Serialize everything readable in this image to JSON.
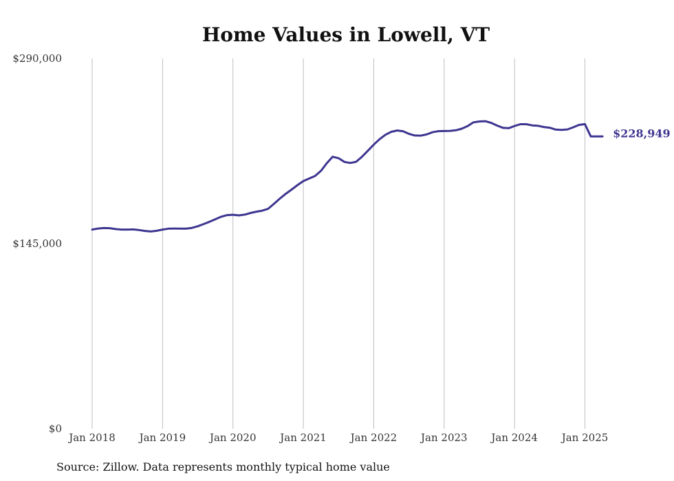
{
  "chart_data": {
    "type": "line",
    "title": "Home Values in Lowell, VT",
    "xlabel": "",
    "ylabel": "",
    "ylim": [
      0,
      290000
    ],
    "y_ticks": [
      {
        "value": 0,
        "label": "$0"
      },
      {
        "value": 145000,
        "label": "$145,000"
      },
      {
        "value": 290000,
        "label": "$290,000"
      }
    ],
    "x_ticks": [
      {
        "value": "2018-01",
        "label": "Jan 2018"
      },
      {
        "value": "2019-01",
        "label": "Jan 2019"
      },
      {
        "value": "2020-01",
        "label": "Jan 2020"
      },
      {
        "value": "2021-01",
        "label": "Jan 2021"
      },
      {
        "value": "2022-01",
        "label": "Jan 2022"
      },
      {
        "value": "2023-01",
        "label": "Jan 2023"
      },
      {
        "value": "2024-01",
        "label": "Jan 2024"
      },
      {
        "value": "2025-01",
        "label": "Jan 2025"
      }
    ],
    "grid": "vertical",
    "color": "#3d3590",
    "series": [
      {
        "x": [
          "2018-01",
          "2018-02",
          "2018-03",
          "2018-04",
          "2018-05",
          "2018-06",
          "2018-07",
          "2018-08",
          "2018-09",
          "2018-10",
          "2018-11",
          "2018-12",
          "2019-01",
          "2019-02",
          "2019-03",
          "2019-04",
          "2019-05",
          "2019-06",
          "2019-07",
          "2019-08",
          "2019-09",
          "2019-10",
          "2019-11",
          "2019-12",
          "2020-01",
          "2020-02",
          "2020-03",
          "2020-04",
          "2020-05",
          "2020-06",
          "2020-07",
          "2020-08",
          "2020-09",
          "2020-10",
          "2020-11",
          "2020-12",
          "2021-01",
          "2021-02",
          "2021-03",
          "2021-04",
          "2021-05",
          "2021-06",
          "2021-07",
          "2021-08",
          "2021-09",
          "2021-10",
          "2021-11",
          "2021-12",
          "2022-01",
          "2022-02",
          "2022-03",
          "2022-04",
          "2022-05",
          "2022-06",
          "2022-07",
          "2022-08",
          "2022-09",
          "2022-10",
          "2022-11",
          "2022-12",
          "2023-01",
          "2023-02",
          "2023-03",
          "2023-04",
          "2023-05",
          "2023-06",
          "2023-07",
          "2023-08",
          "2023-09",
          "2023-10",
          "2023-11",
          "2023-12",
          "2024-01",
          "2024-02",
          "2024-03",
          "2024-04",
          "2024-05",
          "2024-06",
          "2024-07",
          "2024-08",
          "2024-09",
          "2024-10",
          "2024-11",
          "2024-12",
          "2025-01",
          "2025-02",
          "2025-03",
          "2025-04"
        ],
        "values": [
          156000,
          156800,
          157200,
          157100,
          156400,
          156000,
          156000,
          156100,
          155600,
          154900,
          154500,
          155000,
          156000,
          156700,
          156800,
          156700,
          156700,
          157300,
          158600,
          160300,
          162100,
          164100,
          166100,
          167300,
          167600,
          167100,
          167700,
          169000,
          170000,
          170800,
          172300,
          176200,
          180300,
          184000,
          187300,
          190800,
          194000,
          196000,
          198000,
          202000,
          208000,
          213000,
          211900,
          209000,
          208200,
          209100,
          213100,
          217700,
          222500,
          226800,
          230300,
          232600,
          233600,
          233000,
          231000,
          229700,
          229600,
          230500,
          232200,
          233100,
          233200,
          233300,
          233800,
          235000,
          237000,
          240000,
          240700,
          240900,
          239600,
          237500,
          235700,
          235400,
          237100,
          238500,
          238500,
          237600,
          237300,
          236300,
          235800,
          234300,
          234100,
          234400,
          236100,
          238000,
          238600,
          228949,
          228949,
          228949
        ]
      }
    ],
    "end_label": "$228,949",
    "source": "Source: Zillow. Data represents monthly typical home value"
  }
}
